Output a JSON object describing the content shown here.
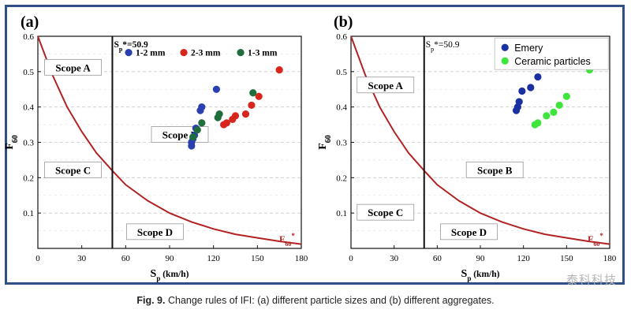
{
  "figure": {
    "caption_label": "Fig. 9.",
    "caption_text": "Change rules of IFI: (a) different particle sizes and (b) different aggregates.",
    "watermark": "泰科科技"
  },
  "chart_data": [
    {
      "type": "scatter",
      "panel_label": "(a)",
      "xlabel": "Sp (km/h)",
      "ylabel": "F60",
      "xlim": [
        0,
        180
      ],
      "ylim": [
        0,
        0.6
      ],
      "x_ticks": [
        "0",
        "30",
        "60",
        "90",
        "120",
        "150",
        "180"
      ],
      "y_ticks": [
        "0.1",
        "0.2",
        "0.3",
        "0.4",
        "0.5",
        "0.6"
      ],
      "vline": {
        "x": 50.9,
        "label": "Sp*=50.9"
      },
      "curve": {
        "label": "F60*",
        "color": "#b22222",
        "points": [
          [
            0,
            0.6
          ],
          [
            10,
            0.49
          ],
          [
            20,
            0.4
          ],
          [
            30,
            0.33
          ],
          [
            40,
            0.27
          ],
          [
            50.9,
            0.22
          ],
          [
            60,
            0.18
          ],
          [
            75,
            0.135
          ],
          [
            90,
            0.1
          ],
          [
            105,
            0.075
          ],
          [
            120,
            0.055
          ],
          [
            135,
            0.04
          ],
          [
            150,
            0.03
          ],
          [
            165,
            0.02
          ],
          [
            180,
            0.012
          ]
        ]
      },
      "scopes": [
        {
          "label": "Scope A",
          "x": 24,
          "y": 0.51
        },
        {
          "label": "Scope B",
          "x": 97,
          "y": 0.32
        },
        {
          "label": "Scope C",
          "x": 24,
          "y": 0.22
        },
        {
          "label": "Scope D",
          "x": 80,
          "y": 0.045
        }
      ],
      "series": [
        {
          "name": "1-2 mm",
          "color": "#2a3fb0",
          "points": [
            [
              105,
              0.29
            ],
            [
              105,
              0.3
            ],
            [
              106,
              0.31
            ],
            [
              107,
              0.32
            ],
            [
              108,
              0.34
            ],
            [
              111,
              0.39
            ],
            [
              112,
              0.4
            ],
            [
              122,
              0.45
            ]
          ]
        },
        {
          "name": "2-3 mm",
          "color": "#d7261e",
          "points": [
            [
              127,
              0.35
            ],
            [
              129,
              0.355
            ],
            [
              133,
              0.365
            ],
            [
              135,
              0.375
            ],
            [
              142,
              0.38
            ],
            [
              146,
              0.405
            ],
            [
              151,
              0.43
            ],
            [
              165,
              0.505
            ]
          ]
        },
        {
          "name": "1-3 mm",
          "color": "#1f6e3c",
          "points": [
            [
              106,
              0.315
            ],
            [
              109,
              0.335
            ],
            [
              112,
              0.355
            ],
            [
              123,
              0.37
            ],
            [
              124,
              0.38
            ],
            [
              147,
              0.44
            ]
          ]
        }
      ]
    },
    {
      "type": "scatter",
      "panel_label": "(b)",
      "xlabel": "Sp (km/h)",
      "ylabel": "F60",
      "xlim": [
        0,
        180
      ],
      "ylim": [
        0,
        0.6
      ],
      "x_ticks": [
        "0",
        "30",
        "60",
        "90",
        "120",
        "150",
        "180"
      ],
      "y_ticks": [
        "0.1",
        "0.2",
        "0.3",
        "0.4",
        "0.5",
        "0.6"
      ],
      "vline": {
        "x": 50.9,
        "label": "Sp*=50.9"
      },
      "curve": {
        "label": "F60*",
        "color": "#b22222",
        "points": [
          [
            0,
            0.6
          ],
          [
            10,
            0.49
          ],
          [
            20,
            0.4
          ],
          [
            30,
            0.33
          ],
          [
            40,
            0.27
          ],
          [
            50.9,
            0.22
          ],
          [
            60,
            0.18
          ],
          [
            75,
            0.135
          ],
          [
            90,
            0.1
          ],
          [
            105,
            0.075
          ],
          [
            120,
            0.055
          ],
          [
            135,
            0.04
          ],
          [
            150,
            0.03
          ],
          [
            165,
            0.02
          ],
          [
            180,
            0.012
          ]
        ]
      },
      "scopes": [
        {
          "label": "Scope A",
          "x": 24,
          "y": 0.46
        },
        {
          "label": "Scope B",
          "x": 100,
          "y": 0.22
        },
        {
          "label": "Scope C",
          "x": 24,
          "y": 0.1
        },
        {
          "label": "Scope D",
          "x": 82,
          "y": 0.045
        }
      ],
      "series": [
        {
          "name": "Emery",
          "color": "#1a2fa0",
          "points": [
            [
              115,
              0.39
            ],
            [
              116,
              0.4
            ],
            [
              117,
              0.415
            ],
            [
              119,
              0.445
            ],
            [
              125,
              0.455
            ],
            [
              130,
              0.485
            ]
          ]
        },
        {
          "name": "Ceramic particles",
          "color": "#3fe43c",
          "points": [
            [
              128,
              0.35
            ],
            [
              130,
              0.355
            ],
            [
              136,
              0.375
            ],
            [
              141,
              0.385
            ],
            [
              145,
              0.405
            ],
            [
              150,
              0.43
            ],
            [
              166,
              0.505
            ]
          ]
        }
      ]
    }
  ]
}
